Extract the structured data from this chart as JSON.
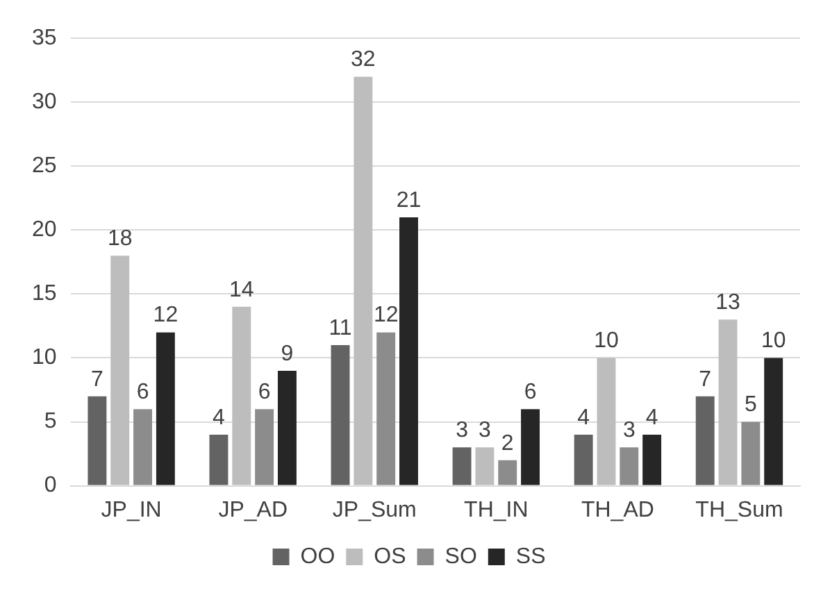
{
  "chart_data": {
    "type": "bar",
    "categories": [
      "JP_IN",
      "JP_AD",
      "JP_Sum",
      "TH_IN",
      "TH_AD",
      "TH_Sum"
    ],
    "series": [
      {
        "name": "OO",
        "color": "#636363",
        "values": [
          7,
          4,
          11,
          3,
          4,
          7
        ]
      },
      {
        "name": "OS",
        "color": "#bdbdbd",
        "values": [
          18,
          14,
          32,
          3,
          10,
          13
        ]
      },
      {
        "name": "SO",
        "color": "#8c8c8c",
        "values": [
          6,
          6,
          12,
          2,
          3,
          5
        ]
      },
      {
        "name": "SS",
        "color": "#262626",
        "values": [
          12,
          9,
          21,
          6,
          4,
          10
        ]
      }
    ],
    "ylim": [
      0,
      35
    ],
    "yticks": [
      0,
      5,
      10,
      15,
      20,
      25,
      30,
      35
    ],
    "grid": "y",
    "legend": "bottom",
    "data_labels": true
  }
}
